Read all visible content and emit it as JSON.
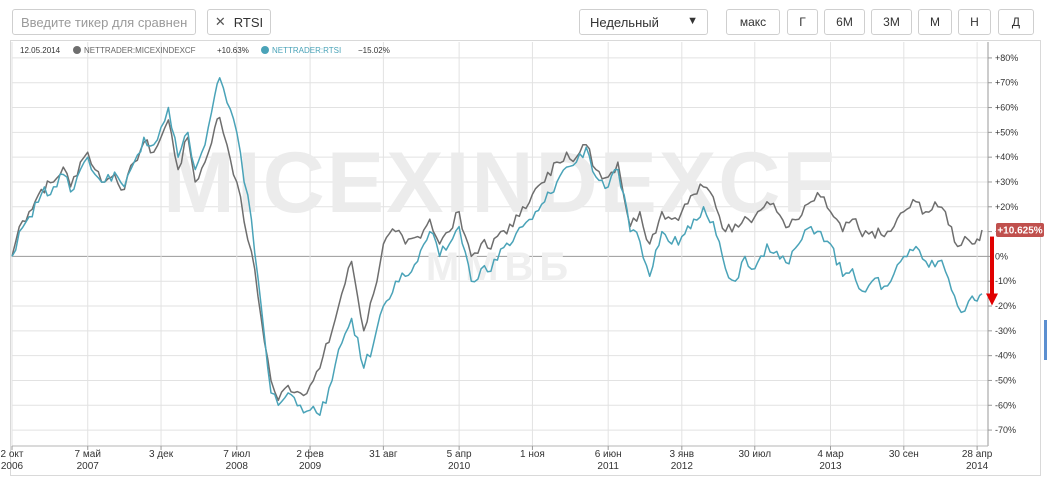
{
  "toolbar": {
    "search_placeholder": "Введите тикер для сравнения",
    "compare_chip": {
      "icon": "close-icon",
      "label": "RTSI"
    },
    "interval_select": {
      "value": "Недельный",
      "icon": "caret-down-icon"
    },
    "periods": [
      "макс",
      "Г",
      "6М",
      "3М",
      "М",
      "Н",
      "Д"
    ]
  },
  "legend": {
    "date": "12.05.2014",
    "items": [
      {
        "name": "NETTRADER:MICEXINDEXCF",
        "value": "+10.63%",
        "color": "#6e6e6e"
      },
      {
        "name": "NETTRADER:RTSI",
        "value": "−15.02%",
        "color": "#4aa3b8"
      }
    ]
  },
  "watermark": {
    "main": "MICEXINDEXCF",
    "sub": "ММВБ"
  },
  "chart_data": {
    "type": "line",
    "yticks": [
      "+80%",
      "+70%",
      "+60%",
      "+50%",
      "+40%",
      "+30%",
      "+20%",
      "+10%",
      "0%",
      "-10%",
      "-20%",
      "-30%",
      "-40%",
      "-50%",
      "-60%",
      "-70%"
    ],
    "ylim": [
      -74,
      84
    ],
    "x_range": [
      "2006-10-02",
      "2014-05-12"
    ],
    "xticks": [
      {
        "date": "2006-10-02",
        "line1": "2 окт",
        "line2": "2006"
      },
      {
        "date": "2007-05-07",
        "line1": "7 май",
        "line2": "2007"
      },
      {
        "date": "2007-12-03",
        "line1": "3 дек",
        "line2": ""
      },
      {
        "date": "2008-07-07",
        "line1": "7 июл",
        "line2": "2008"
      },
      {
        "date": "2009-02-02",
        "line1": "2 фев",
        "line2": "2009"
      },
      {
        "date": "2009-08-31",
        "line1": "31 авг",
        "line2": ""
      },
      {
        "date": "2010-04-05",
        "line1": "5 апр",
        "line2": "2010"
      },
      {
        "date": "2010-11-01",
        "line1": "1 ноя",
        "line2": ""
      },
      {
        "date": "2011-06-06",
        "line1": "6 июн",
        "line2": "2011"
      },
      {
        "date": "2012-01-03",
        "line1": "3 янв",
        "line2": "2012"
      },
      {
        "date": "2012-07-30",
        "line1": "30 июл",
        "line2": ""
      },
      {
        "date": "2013-03-04",
        "line1": "4 мар",
        "line2": "2013"
      },
      {
        "date": "2013-09-30",
        "line1": "30 сен",
        "line2": ""
      },
      {
        "date": "2014-04-28",
        "line1": "28 апр",
        "line2": "2014"
      }
    ],
    "last_value_badge": {
      "text": "+10.625%",
      "value": 10.625,
      "color": "#c0504d"
    },
    "annotation_arrow": {
      "from_value": 8,
      "to_value": -19,
      "color": "#e00000"
    },
    "series": [
      {
        "name": "NETTRADER:MICEXINDEXCF",
        "color": "#6e6e6e",
        "points": [
          [
            "2006-10-02",
            0
          ],
          [
            "2006-10-23",
            12
          ],
          [
            "2006-11-20",
            18
          ],
          [
            "2006-12-25",
            27
          ],
          [
            "2007-01-29",
            30
          ],
          [
            "2007-02-26",
            36
          ],
          [
            "2007-03-19",
            28
          ],
          [
            "2007-04-16",
            38
          ],
          [
            "2007-05-07",
            42
          ],
          [
            "2007-05-28",
            35
          ],
          [
            "2007-06-25",
            30
          ],
          [
            "2007-07-23",
            33
          ],
          [
            "2007-08-20",
            27
          ],
          [
            "2007-09-17",
            38
          ],
          [
            "2007-10-15",
            46
          ],
          [
            "2007-11-12",
            42
          ],
          [
            "2007-12-03",
            48
          ],
          [
            "2007-12-24",
            55
          ],
          [
            "2008-01-21",
            35
          ],
          [
            "2008-02-18",
            48
          ],
          [
            "2008-03-10",
            30
          ],
          [
            "2008-04-07",
            38
          ],
          [
            "2008-05-05",
            52
          ],
          [
            "2008-05-19",
            56
          ],
          [
            "2008-06-09",
            45
          ],
          [
            "2008-07-07",
            30
          ],
          [
            "2008-07-28",
            14
          ],
          [
            "2008-08-18",
            2
          ],
          [
            "2008-09-15",
            -25
          ],
          [
            "2008-10-13",
            -50
          ],
          [
            "2008-11-03",
            -58
          ],
          [
            "2008-12-01",
            -52
          ],
          [
            "2009-01-05",
            -55
          ],
          [
            "2009-02-02",
            -52
          ],
          [
            "2009-03-02",
            -45
          ],
          [
            "2009-04-06",
            -30
          ],
          [
            "2009-05-04",
            -15
          ],
          [
            "2009-06-01",
            -2
          ],
          [
            "2009-07-06",
            -30
          ],
          [
            "2009-08-03",
            -15
          ],
          [
            "2009-08-31",
            5
          ],
          [
            "2009-10-05",
            10
          ],
          [
            "2009-11-02",
            5
          ],
          [
            "2009-12-07",
            8
          ],
          [
            "2010-01-11",
            15
          ],
          [
            "2010-02-08",
            5
          ],
          [
            "2010-03-08",
            10
          ],
          [
            "2010-04-05",
            18
          ],
          [
            "2010-05-10",
            0
          ],
          [
            "2010-06-07",
            5
          ],
          [
            "2010-07-05",
            3
          ],
          [
            "2010-08-02",
            10
          ],
          [
            "2010-09-06",
            12
          ],
          [
            "2010-10-04",
            20
          ],
          [
            "2010-11-01",
            25
          ],
          [
            "2010-12-06",
            30
          ],
          [
            "2011-01-10",
            38
          ],
          [
            "2011-02-07",
            42
          ],
          [
            "2011-03-07",
            40
          ],
          [
            "2011-04-04",
            45
          ],
          [
            "2011-05-02",
            35
          ],
          [
            "2011-06-06",
            32
          ],
          [
            "2011-07-04",
            38
          ],
          [
            "2011-08-08",
            12
          ],
          [
            "2011-09-05",
            18
          ],
          [
            "2011-10-03",
            5
          ],
          [
            "2011-11-07",
            18
          ],
          [
            "2011-12-05",
            15
          ],
          [
            "2012-01-03",
            18
          ],
          [
            "2012-02-06",
            25
          ],
          [
            "2012-03-05",
            28
          ],
          [
            "2012-04-02",
            24
          ],
          [
            "2012-05-07",
            10
          ],
          [
            "2012-06-04",
            13
          ],
          [
            "2012-07-02",
            16
          ],
          [
            "2012-07-30",
            16
          ],
          [
            "2012-09-03",
            22
          ],
          [
            "2012-10-01",
            18
          ],
          [
            "2012-11-05",
            12
          ],
          [
            "2012-12-03",
            15
          ],
          [
            "2013-01-07",
            22
          ],
          [
            "2013-02-04",
            24
          ],
          [
            "2013-03-04",
            18
          ],
          [
            "2013-04-08",
            10
          ],
          [
            "2013-05-06",
            15
          ],
          [
            "2013-06-03",
            8
          ],
          [
            "2013-07-01",
            10
          ],
          [
            "2013-08-05",
            8
          ],
          [
            "2013-09-02",
            12
          ],
          [
            "2013-09-30",
            18
          ],
          [
            "2013-11-04",
            22
          ],
          [
            "2013-12-02",
            18
          ],
          [
            "2014-01-06",
            20
          ],
          [
            "2014-01-27",
            18
          ],
          [
            "2014-03-03",
            4
          ],
          [
            "2014-03-24",
            8
          ],
          [
            "2014-04-14",
            5
          ],
          [
            "2014-04-28",
            7
          ],
          [
            "2014-05-12",
            10.63
          ]
        ]
      },
      {
        "name": "NETTRADER:RTSI",
        "color": "#4aa3b8",
        "points": [
          [
            "2006-10-02",
            0
          ],
          [
            "2006-10-23",
            10
          ],
          [
            "2006-11-20",
            16
          ],
          [
            "2006-12-25",
            25
          ],
          [
            "2007-01-29",
            28
          ],
          [
            "2007-02-26",
            33
          ],
          [
            "2007-03-19",
            26
          ],
          [
            "2007-04-16",
            35
          ],
          [
            "2007-05-07",
            40
          ],
          [
            "2007-05-28",
            33
          ],
          [
            "2007-06-25",
            30
          ],
          [
            "2007-07-23",
            34
          ],
          [
            "2007-08-20",
            28
          ],
          [
            "2007-09-17",
            38
          ],
          [
            "2007-10-15",
            48
          ],
          [
            "2007-11-12",
            45
          ],
          [
            "2007-12-03",
            52
          ],
          [
            "2007-12-24",
            60
          ],
          [
            "2008-01-21",
            40
          ],
          [
            "2008-02-18",
            50
          ],
          [
            "2008-03-10",
            35
          ],
          [
            "2008-04-07",
            45
          ],
          [
            "2008-05-05",
            65
          ],
          [
            "2008-05-19",
            72
          ],
          [
            "2008-06-09",
            62
          ],
          [
            "2008-07-07",
            50
          ],
          [
            "2008-07-28",
            30
          ],
          [
            "2008-08-18",
            15
          ],
          [
            "2008-09-15",
            -20
          ],
          [
            "2008-10-13",
            -55
          ],
          [
            "2008-11-03",
            -60
          ],
          [
            "2008-12-01",
            -55
          ],
          [
            "2009-01-05",
            -60
          ],
          [
            "2009-02-02",
            -62
          ],
          [
            "2009-03-02",
            -64
          ],
          [
            "2009-04-06",
            -50
          ],
          [
            "2009-05-04",
            -35
          ],
          [
            "2009-06-01",
            -25
          ],
          [
            "2009-07-06",
            -45
          ],
          [
            "2009-08-03",
            -35
          ],
          [
            "2009-08-31",
            -20
          ],
          [
            "2009-10-05",
            -10
          ],
          [
            "2009-11-02",
            -8
          ],
          [
            "2009-12-07",
            -2
          ],
          [
            "2010-01-11",
            10
          ],
          [
            "2010-02-08",
            0
          ],
          [
            "2010-03-08",
            5
          ],
          [
            "2010-04-05",
            12
          ],
          [
            "2010-05-10",
            -10
          ],
          [
            "2010-06-07",
            -5
          ],
          [
            "2010-07-05",
            -6
          ],
          [
            "2010-08-02",
            3
          ],
          [
            "2010-09-06",
            6
          ],
          [
            "2010-10-04",
            12
          ],
          [
            "2010-11-01",
            15
          ],
          [
            "2010-12-06",
            22
          ],
          [
            "2011-01-10",
            30
          ],
          [
            "2011-02-07",
            36
          ],
          [
            "2011-03-07",
            38
          ],
          [
            "2011-04-04",
            44
          ],
          [
            "2011-05-02",
            32
          ],
          [
            "2011-06-06",
            28
          ],
          [
            "2011-07-04",
            35
          ],
          [
            "2011-08-08",
            10
          ],
          [
            "2011-09-05",
            6
          ],
          [
            "2011-10-03",
            -8
          ],
          [
            "2011-11-07",
            10
          ],
          [
            "2011-12-05",
            5
          ],
          [
            "2012-01-03",
            8
          ],
          [
            "2012-02-06",
            15
          ],
          [
            "2012-03-05",
            20
          ],
          [
            "2012-04-02",
            14
          ],
          [
            "2012-05-07",
            -5
          ],
          [
            "2012-06-04",
            -10
          ],
          [
            "2012-07-02",
            0
          ],
          [
            "2012-07-30",
            -5
          ],
          [
            "2012-09-03",
            5
          ],
          [
            "2012-10-01",
            2
          ],
          [
            "2012-11-05",
            -3
          ],
          [
            "2012-12-03",
            5
          ],
          [
            "2013-01-07",
            12
          ],
          [
            "2013-02-04",
            10
          ],
          [
            "2013-03-04",
            5
          ],
          [
            "2013-04-08",
            -8
          ],
          [
            "2013-05-06",
            -5
          ],
          [
            "2013-06-03",
            -14
          ],
          [
            "2013-07-01",
            -10
          ],
          [
            "2013-08-05",
            -12
          ],
          [
            "2013-09-02",
            -7
          ],
          [
            "2013-09-30",
            0
          ],
          [
            "2013-11-04",
            4
          ],
          [
            "2013-12-02",
            -2
          ],
          [
            "2014-01-06",
            -2
          ],
          [
            "2014-01-27",
            -6
          ],
          [
            "2014-03-03",
            -20
          ],
          [
            "2014-03-24",
            -22
          ],
          [
            "2014-04-14",
            -16
          ],
          [
            "2014-04-28",
            -18
          ],
          [
            "2014-05-12",
            -15.02
          ]
        ]
      }
    ]
  }
}
